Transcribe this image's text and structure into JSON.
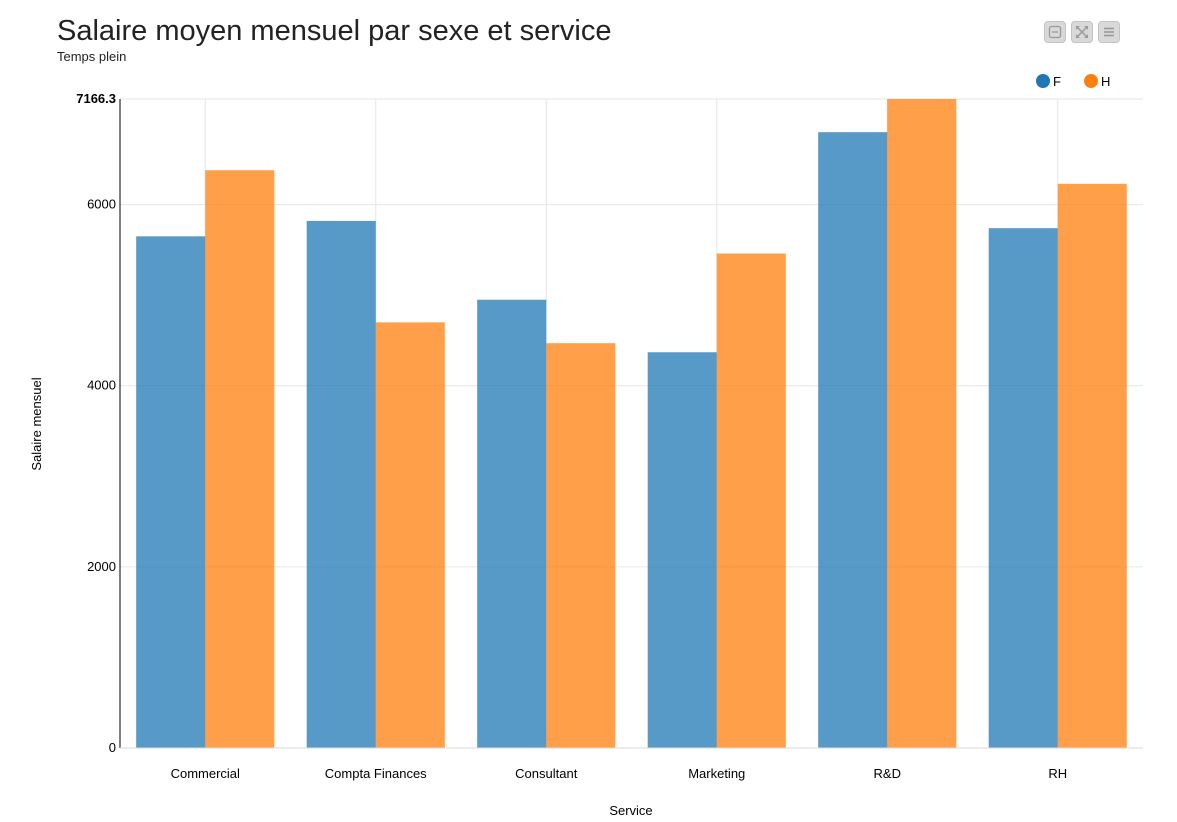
{
  "header": {
    "title": "Salaire moyen mensuel par sexe et service",
    "subtitle": "Temps plein"
  },
  "toolbar": [
    {
      "icon": "minimize-icon"
    },
    {
      "icon": "fullscreen-icon"
    },
    {
      "icon": "menu-icon"
    }
  ],
  "colors": {
    "F": "#1f77b4",
    "H": "#ff7f0e",
    "grid": "#e6e6e6",
    "axis": "#000000"
  },
  "chart_data": {
    "type": "bar",
    "categories": [
      "Commercial",
      "Compta Finances",
      "Consultant",
      "Marketing",
      "R&D",
      "RH"
    ],
    "series": [
      {
        "name": "F",
        "values": [
          5650,
          5820,
          4950,
          4370,
          6800,
          5740
        ]
      },
      {
        "name": "H",
        "values": [
          6380,
          4700,
          4470,
          5460,
          7166.3,
          6230
        ]
      }
    ],
    "xlabel": "Service",
    "ylabel": "Salaire mensuel",
    "ylim": [
      0,
      7166.3
    ],
    "yticks": [
      "0",
      "2000",
      "4000",
      "6000",
      "7166.3"
    ],
    "ytick_values": [
      0,
      2000,
      4000,
      6000,
      7166.3
    ],
    "grid": true,
    "legend_position": "top-right"
  }
}
